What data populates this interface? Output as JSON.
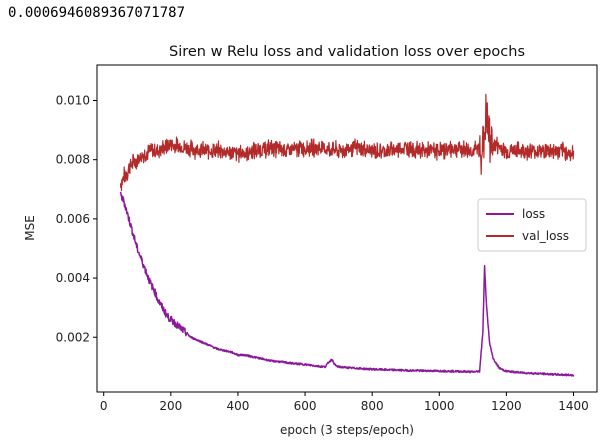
{
  "output": {
    "text": "0.0006946089367071787"
  },
  "chart_data": {
    "type": "line",
    "title": "Siren w Relu loss and validation loss over epochs",
    "xlabel": "epoch (3 steps/epoch)",
    "ylabel": "MSE",
    "xlim": [
      -20,
      1470
    ],
    "ylim": [
      0.00015,
      0.0112
    ],
    "xticks": [
      0,
      200,
      400,
      600,
      800,
      1000,
      1200,
      1400
    ],
    "xtick_labels": [
      "0",
      "200",
      "400",
      "600",
      "800",
      "1000",
      "1200",
      "1400"
    ],
    "yticks": [
      0.002,
      0.004,
      0.006,
      0.008,
      0.01
    ],
    "ytick_labels": [
      "0.002",
      "0.004",
      "0.006",
      "0.008",
      "0.010"
    ],
    "grid": false,
    "legend": "center-right",
    "series": [
      {
        "name": "loss",
        "color": "#8b1a9b",
        "x": [
          50,
          55,
          60,
          65,
          70,
          80,
          90,
          100,
          110,
          120,
          130,
          140,
          150,
          160,
          170,
          180,
          190,
          200,
          220,
          240,
          260,
          280,
          300,
          320,
          340,
          360,
          380,
          400,
          420,
          440,
          460,
          480,
          500,
          520,
          540,
          560,
          580,
          600,
          620,
          640,
          660,
          670,
          680,
          690,
          700,
          720,
          740,
          760,
          780,
          800,
          850,
          900,
          950,
          1000,
          1050,
          1100,
          1120,
          1130,
          1135,
          1140,
          1145,
          1150,
          1160,
          1170,
          1180,
          1200,
          1250,
          1300,
          1350,
          1400
        ],
        "values": [
          0.0068,
          0.0067,
          0.0066,
          0.0064,
          0.0062,
          0.0058,
          0.0054,
          0.005,
          0.0047,
          0.0044,
          0.0041,
          0.0038,
          0.0036,
          0.0033,
          0.0031,
          0.0029,
          0.0027,
          0.0026,
          0.0024,
          0.0022,
          0.002,
          0.0019,
          0.0018,
          0.0017,
          0.0016,
          0.00155,
          0.0015,
          0.0014,
          0.0014,
          0.00135,
          0.0013,
          0.00125,
          0.0012,
          0.00118,
          0.00115,
          0.00112,
          0.0011,
          0.00108,
          0.00105,
          0.00102,
          0.001,
          0.00115,
          0.00125,
          0.00105,
          0.001,
          0.00098,
          0.00096,
          0.00095,
          0.00093,
          0.00092,
          0.0009,
          0.00088,
          0.00087,
          0.00086,
          0.00085,
          0.00083,
          0.00085,
          0.0022,
          0.0044,
          0.0032,
          0.0025,
          0.0018,
          0.0013,
          0.0011,
          0.00095,
          0.00085,
          0.0008,
          0.00077,
          0.00074,
          0.00072
        ]
      },
      {
        "name": "val_loss",
        "color": "#b22a2a",
        "x": [
          50,
          60,
          70,
          80,
          100,
          120,
          140,
          160,
          180,
          200,
          250,
          300,
          350,
          400,
          450,
          500,
          550,
          600,
          650,
          700,
          750,
          800,
          850,
          900,
          950,
          1000,
          1050,
          1100,
          1130,
          1140,
          1150,
          1200,
          1250,
          1300,
          1350,
          1400
        ],
        "values": [
          0.0072,
          0.0074,
          0.0076,
          0.0078,
          0.008,
          0.0082,
          0.0083,
          0.0083,
          0.0084,
          0.0085,
          0.0084,
          0.0083,
          0.0083,
          0.0082,
          0.0083,
          0.0084,
          0.0083,
          0.0084,
          0.0084,
          0.0083,
          0.0084,
          0.0083,
          0.0083,
          0.0084,
          0.0083,
          0.0083,
          0.0084,
          0.0083,
          0.0084,
          0.0095,
          0.0086,
          0.0083,
          0.0083,
          0.0083,
          0.0083,
          0.0082
        ],
        "noise_amplitude": 0.00035
      }
    ]
  }
}
